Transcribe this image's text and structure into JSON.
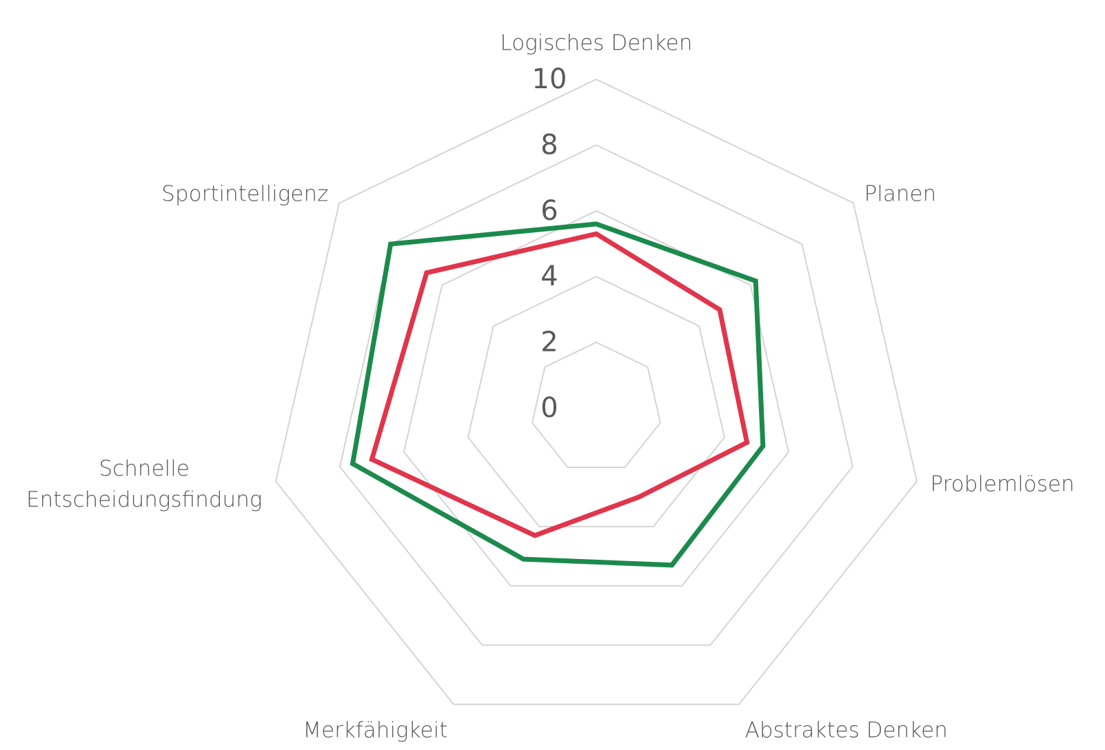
{
  "chart_data": {
    "type": "radar",
    "categories": [
      "Logisches Denken",
      "Planen",
      "Problemlösen",
      "Abstraktes Denken",
      "Merkfähigkeit",
      "Schnelle\nEntscheidungsfindung",
      "Sportintelligenz"
    ],
    "series": [
      {
        "color": "#1b8a4c",
        "values": [
          5.6,
          6.2,
          5.2,
          5.3,
          5.1,
          7.6,
          8.0
        ]
      },
      {
        "color": "#e0354b",
        "values": [
          5.3,
          4.8,
          4.7,
          3.0,
          4.3,
          7.0,
          6.6
        ]
      }
    ],
    "ylim": [
      0,
      10
    ],
    "yticks": [
      0,
      2,
      4,
      6,
      8,
      10
    ],
    "grid": true
  }
}
